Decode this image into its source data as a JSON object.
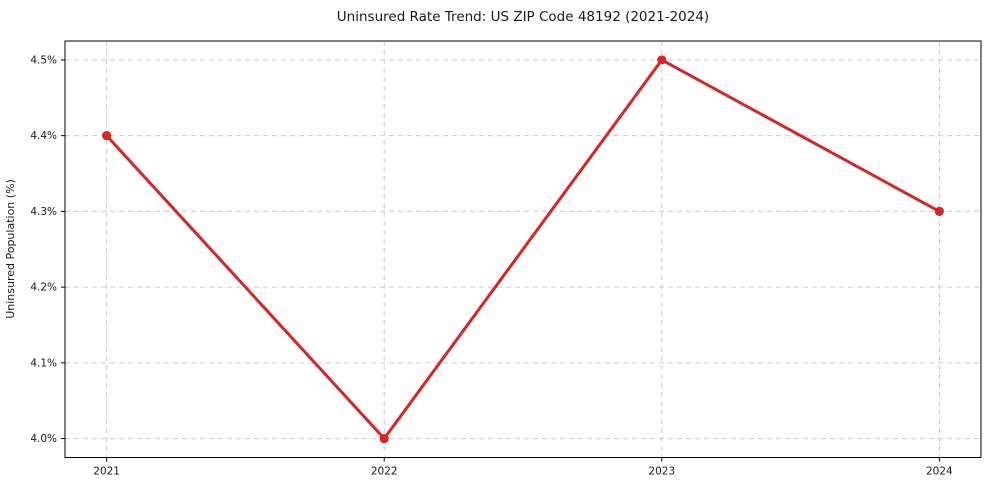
{
  "chart_data": {
    "type": "line",
    "title": "Uninsured Rate Trend: US ZIP Code 48192 (2021-2024)",
    "xlabel": "",
    "ylabel": "Uninsured Population (%)",
    "x": [
      2021,
      2022,
      2023,
      2024
    ],
    "series": [
      {
        "name": "Uninsured rate",
        "values": [
          4.4,
          4.0,
          4.5,
          4.3
        ]
      }
    ],
    "x_tick_values": [
      2021,
      2022,
      2023,
      2024
    ],
    "x_tick_labels": [
      "2021",
      "2022",
      "2023",
      "2024"
    ],
    "y_tick_values": [
      4.0,
      4.1,
      4.2,
      4.3,
      4.4,
      4.5
    ],
    "y_tick_labels": [
      "4.0%",
      "4.1%",
      "4.2%",
      "4.3%",
      "4.4%",
      "4.5%"
    ],
    "xlim": [
      2020.85,
      2024.15
    ],
    "ylim": [
      3.975,
      4.525
    ],
    "grid": true,
    "grid_style": "dashed",
    "legend_position": "none",
    "colors": {
      "line": "#d62728",
      "marker": "#d62728",
      "grid": "#cccccc",
      "spine": "#000000",
      "tick": "#000000",
      "background": "#ffffff"
    }
  }
}
